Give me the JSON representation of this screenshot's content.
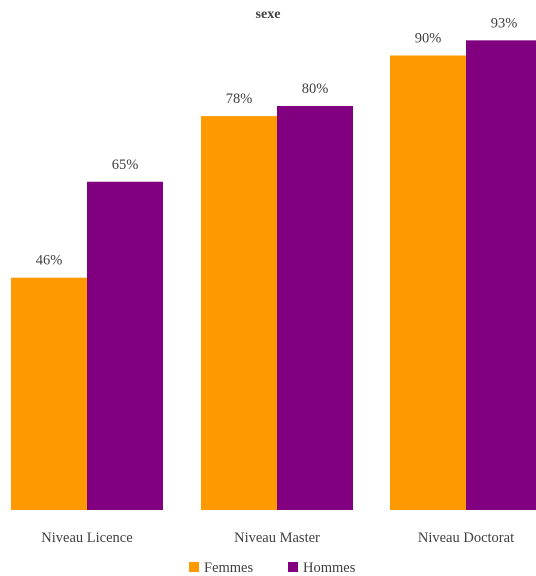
{
  "chart_data": {
    "type": "bar",
    "title": "sexe",
    "categories": [
      "Niveau Licence",
      "Niveau Master",
      "Niveau Doctorat"
    ],
    "series": [
      {
        "name": "Femmes",
        "values": [
          46,
          78,
          90
        ],
        "labels": [
          "46%",
          "78%",
          "90%"
        ],
        "color": "#FF9900"
      },
      {
        "name": "Hommes",
        "values": [
          65,
          80,
          93
        ],
        "labels": [
          "65%",
          "80%",
          "93%"
        ],
        "color": "#800080"
      }
    ],
    "ylim": [
      0,
      100
    ],
    "grid": false,
    "legend": "bottom",
    "xlabel": "",
    "ylabel": ""
  }
}
